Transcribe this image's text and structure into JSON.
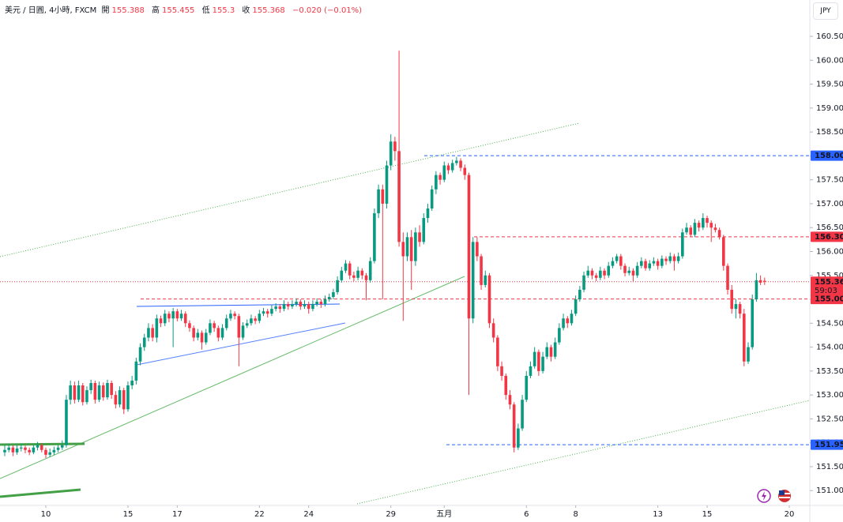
{
  "chart_data": {
    "type": "candlestick",
    "header": {
      "symbol": "美元 / 日圓, 4小時, FXCM",
      "ohlc_labels": [
        "開",
        "高",
        "低",
        "收"
      ],
      "ohlc_values": [
        155.388,
        155.455,
        155.3,
        155.368
      ],
      "change": "−0.020 (−0.01%)"
    },
    "currency": "JPY",
    "up_color": "#089981",
    "down_color": "#f23645",
    "ylim": [
      150.69,
      161.26
    ],
    "yticks": [
      {
        "value": 151.0,
        "label": "151.000"
      },
      {
        "value": 151.5,
        "label": "151.500"
      },
      {
        "value": 152.0,
        "label": "152.000"
      },
      {
        "value": 152.5,
        "label": "152.500"
      },
      {
        "value": 153.0,
        "label": "153.000"
      },
      {
        "value": 153.5,
        "label": "153.500"
      },
      {
        "value": 154.0,
        "label": "154.000"
      },
      {
        "value": 154.5,
        "label": "154.500"
      },
      {
        "value": 155.0,
        "label": "155.000"
      },
      {
        "value": 155.5,
        "label": "155.500"
      },
      {
        "value": 156.0,
        "label": "156.000"
      },
      {
        "value": 156.5,
        "label": "156.500"
      },
      {
        "value": 157.0,
        "label": "157.000"
      },
      {
        "value": 157.5,
        "label": "157.500"
      },
      {
        "value": 158.0,
        "label": "158.000"
      },
      {
        "value": 158.5,
        "label": "158.500"
      },
      {
        "value": 159.0,
        "label": "159.000"
      },
      {
        "value": 159.5,
        "label": "159.500"
      },
      {
        "value": 160.0,
        "label": "160.000"
      },
      {
        "value": 160.5,
        "label": "160.500"
      }
    ],
    "xlim": [
      -1.15,
      196
    ],
    "xticks": [
      {
        "value": 10,
        "label": "10"
      },
      {
        "value": 30,
        "label": "15"
      },
      {
        "value": 42,
        "label": "17"
      },
      {
        "value": 62,
        "label": "22"
      },
      {
        "value": 74,
        "label": "24"
      },
      {
        "value": 94,
        "label": "29"
      },
      {
        "value": 107,
        "label": "五月"
      },
      {
        "value": 127,
        "label": "6"
      },
      {
        "value": 139,
        "label": "8"
      },
      {
        "value": 159,
        "label": "13"
      },
      {
        "value": 171,
        "label": "15"
      },
      {
        "value": 191,
        "label": "20"
      }
    ],
    "levels": [
      {
        "value": 158.005,
        "color": "#2962ff"
      },
      {
        "value": 156.307,
        "color": "#f23645"
      },
      {
        "value": 155.007,
        "color": "#f23645"
      },
      {
        "value": 151.959,
        "color": "#2962ff"
      }
    ],
    "last_price": 155.368,
    "countdown": "59:03",
    "ohlc": [
      [
        151.8,
        151.95,
        151.72,
        151.85
      ],
      [
        151.85,
        151.98,
        151.8,
        151.9
      ],
      [
        151.9,
        151.95,
        151.72,
        151.8
      ],
      [
        151.8,
        151.95,
        151.75,
        151.88
      ],
      [
        151.88,
        151.98,
        151.82,
        151.9
      ],
      [
        151.9,
        151.94,
        151.78,
        151.85
      ],
      [
        151.85,
        151.9,
        151.74,
        151.8
      ],
      [
        151.8,
        151.96,
        151.76,
        151.9
      ],
      [
        151.9,
        152.02,
        151.84,
        151.95
      ],
      [
        151.95,
        151.99,
        151.8,
        151.85
      ],
      [
        151.85,
        151.9,
        151.68,
        151.75
      ],
      [
        151.75,
        151.88,
        151.7,
        151.8
      ],
      [
        151.8,
        151.92,
        151.74,
        151.85
      ],
      [
        151.85,
        151.96,
        151.8,
        151.9
      ],
      [
        151.9,
        152.05,
        151.85,
        151.95
      ],
      [
        151.95,
        153.0,
        151.9,
        152.9
      ],
      [
        152.9,
        153.3,
        152.8,
        153.2
      ],
      [
        153.2,
        153.28,
        152.82,
        152.9
      ],
      [
        152.9,
        153.3,
        152.85,
        153.2
      ],
      [
        153.2,
        153.25,
        152.78,
        152.85
      ],
      [
        152.85,
        153.18,
        152.8,
        153.1
      ],
      [
        153.1,
        153.32,
        153.02,
        153.25
      ],
      [
        153.25,
        153.3,
        152.82,
        152.9
      ],
      [
        152.9,
        153.28,
        152.85,
        153.2
      ],
      [
        153.2,
        153.26,
        152.88,
        152.95
      ],
      [
        152.95,
        153.32,
        152.9,
        153.25
      ],
      [
        153.25,
        153.3,
        152.92,
        153.0
      ],
      [
        153.0,
        153.08,
        152.72,
        152.8
      ],
      [
        152.8,
        153.18,
        152.74,
        153.1
      ],
      [
        153.1,
        153.15,
        152.6,
        152.7
      ],
      [
        152.7,
        153.28,
        152.65,
        153.2
      ],
      [
        153.2,
        153.4,
        153.12,
        153.3
      ],
      [
        153.3,
        153.78,
        153.22,
        153.7
      ],
      [
        153.7,
        154.08,
        153.62,
        154.0
      ],
      [
        154.0,
        154.28,
        153.92,
        154.2
      ],
      [
        154.2,
        154.5,
        154.12,
        154.4
      ],
      [
        154.4,
        154.48,
        154.12,
        154.2
      ],
      [
        154.2,
        154.68,
        154.1,
        154.6
      ],
      [
        154.6,
        154.66,
        154.42,
        154.5
      ],
      [
        154.5,
        154.78,
        154.44,
        154.7
      ],
      [
        154.7,
        154.75,
        154.52,
        154.6
      ],
      [
        154.6,
        154.82,
        154.0,
        154.75
      ],
      [
        154.75,
        154.8,
        154.54,
        154.6
      ],
      [
        154.6,
        154.78,
        154.55,
        154.7
      ],
      [
        154.7,
        154.75,
        154.42,
        154.5
      ],
      [
        154.5,
        154.56,
        154.32,
        154.4
      ],
      [
        154.4,
        154.45,
        154.12,
        154.2
      ],
      [
        154.2,
        154.38,
        154.14,
        154.3
      ],
      [
        154.3,
        154.35,
        153.95,
        154.1
      ],
      [
        154.1,
        154.38,
        154.05,
        154.3
      ],
      [
        154.3,
        154.58,
        154.25,
        154.5
      ],
      [
        154.5,
        154.55,
        154.32,
        154.4
      ],
      [
        154.4,
        154.45,
        154.12,
        154.2
      ],
      [
        154.2,
        154.48,
        154.15,
        154.4
      ],
      [
        154.4,
        154.68,
        154.35,
        154.6
      ],
      [
        154.6,
        154.78,
        154.55,
        154.7
      ],
      [
        154.7,
        154.75,
        154.58,
        154.65
      ],
      [
        154.65,
        154.7,
        153.6,
        154.2
      ],
      [
        154.2,
        154.52,
        154.15,
        154.45
      ],
      [
        154.45,
        154.58,
        154.4,
        154.5
      ],
      [
        154.5,
        154.68,
        154.45,
        154.6
      ],
      [
        154.6,
        154.65,
        154.48,
        154.55
      ],
      [
        154.55,
        154.78,
        154.5,
        154.7
      ],
      [
        154.7,
        154.82,
        154.65,
        154.75
      ],
      [
        154.75,
        154.8,
        154.62,
        154.7
      ],
      [
        154.7,
        154.88,
        154.65,
        154.8
      ],
      [
        154.8,
        154.92,
        154.75,
        154.85
      ],
      [
        154.85,
        154.9,
        154.72,
        154.8
      ],
      [
        154.8,
        154.98,
        154.75,
        154.9
      ],
      [
        154.9,
        154.95,
        154.78,
        154.85
      ],
      [
        154.85,
        154.98,
        154.8,
        154.9
      ],
      [
        154.9,
        155.02,
        154.85,
        154.95
      ],
      [
        154.95,
        155.0,
        154.78,
        154.85
      ],
      [
        154.85,
        154.98,
        154.8,
        154.9
      ],
      [
        154.9,
        154.95,
        154.7,
        154.8
      ],
      [
        154.8,
        154.98,
        154.75,
        154.9
      ],
      [
        154.9,
        155.02,
        154.85,
        154.95
      ],
      [
        154.95,
        155.0,
        154.82,
        154.9
      ],
      [
        154.9,
        155.08,
        154.85,
        155.0
      ],
      [
        155.0,
        155.12,
        154.95,
        155.05
      ],
      [
        155.05,
        155.22,
        155.0,
        155.15
      ],
      [
        155.15,
        155.48,
        155.1,
        155.4
      ],
      [
        155.4,
        155.68,
        155.35,
        155.6
      ],
      [
        155.6,
        155.82,
        155.55,
        155.75
      ],
      [
        155.75,
        155.8,
        155.42,
        155.5
      ],
      [
        155.5,
        155.58,
        155.38,
        155.45
      ],
      [
        155.45,
        155.68,
        155.4,
        155.6
      ],
      [
        155.6,
        155.65,
        155.42,
        155.5
      ],
      [
        155.5,
        155.55,
        154.98,
        155.4
      ],
      [
        155.4,
        155.88,
        155.35,
        155.8
      ],
      [
        155.8,
        156.9,
        155.75,
        156.8
      ],
      [
        156.8,
        157.4,
        156.7,
        157.3
      ],
      [
        157.3,
        157.4,
        155.0,
        157.0
      ],
      [
        157.0,
        157.9,
        156.9,
        157.8
      ],
      [
        157.8,
        158.45,
        157.7,
        158.3
      ],
      [
        158.3,
        158.4,
        157.9,
        158.1
      ],
      [
        158.1,
        160.2,
        156.1,
        156.2
      ],
      [
        156.2,
        156.4,
        154.55,
        155.9
      ],
      [
        155.9,
        156.4,
        155.8,
        156.3
      ],
      [
        156.3,
        156.45,
        155.2,
        155.8
      ],
      [
        155.8,
        156.5,
        155.7,
        156.4
      ],
      [
        156.4,
        156.55,
        156.1,
        156.2
      ],
      [
        156.2,
        156.8,
        156.15,
        156.7
      ],
      [
        156.7,
        157.0,
        156.6,
        156.9
      ],
      [
        156.9,
        157.38,
        156.85,
        157.3
      ],
      [
        157.3,
        157.68,
        157.2,
        157.6
      ],
      [
        157.6,
        157.65,
        157.4,
        157.5
      ],
      [
        157.5,
        157.88,
        157.45,
        157.8
      ],
      [
        157.8,
        157.85,
        157.62,
        157.7
      ],
      [
        157.7,
        157.92,
        157.65,
        157.85
      ],
      [
        157.85,
        157.98,
        157.8,
        157.9
      ],
      [
        157.9,
        157.95,
        157.68,
        157.75
      ],
      [
        157.75,
        157.82,
        157.5,
        157.6
      ],
      [
        157.6,
        157.65,
        153.0,
        154.6
      ],
      [
        154.6,
        156.3,
        154.5,
        156.2
      ],
      [
        156.2,
        156.3,
        155.8,
        155.9
      ],
      [
        155.9,
        155.95,
        155.2,
        155.3
      ],
      [
        155.3,
        155.6,
        155.25,
        155.5
      ],
      [
        155.5,
        155.55,
        154.4,
        154.5
      ],
      [
        154.5,
        154.6,
        154.1,
        154.2
      ],
      [
        154.2,
        154.25,
        153.5,
        153.6
      ],
      [
        153.6,
        153.7,
        153.3,
        153.4
      ],
      [
        153.4,
        153.45,
        152.9,
        153.0
      ],
      [
        153.0,
        153.1,
        152.7,
        152.8
      ],
      [
        152.8,
        152.85,
        151.8,
        151.9
      ],
      [
        151.9,
        152.4,
        151.85,
        152.3
      ],
      [
        152.3,
        153.0,
        152.25,
        152.9
      ],
      [
        152.9,
        153.5,
        152.85,
        153.4
      ],
      [
        153.4,
        153.7,
        153.35,
        153.6
      ],
      [
        153.6,
        154.0,
        153.55,
        153.9
      ],
      [
        153.9,
        153.95,
        153.4,
        153.5
      ],
      [
        153.5,
        153.9,
        153.45,
        153.8
      ],
      [
        153.8,
        154.1,
        153.75,
        154.0
      ],
      [
        154.0,
        154.05,
        153.7,
        153.8
      ],
      [
        153.8,
        154.2,
        153.75,
        154.1
      ],
      [
        154.1,
        154.5,
        154.05,
        154.4
      ],
      [
        154.4,
        154.7,
        154.35,
        154.6
      ],
      [
        154.6,
        154.65,
        154.4,
        154.5
      ],
      [
        154.5,
        154.78,
        154.45,
        154.7
      ],
      [
        154.7,
        155.08,
        154.65,
        155.0
      ],
      [
        155.0,
        155.28,
        154.95,
        155.2
      ],
      [
        155.2,
        155.58,
        155.15,
        155.5
      ],
      [
        155.5,
        155.7,
        155.45,
        155.6
      ],
      [
        155.6,
        155.65,
        155.42,
        155.5
      ],
      [
        155.5,
        155.55,
        155.38,
        155.45
      ],
      [
        155.45,
        155.68,
        155.4,
        155.6
      ],
      [
        155.6,
        155.65,
        155.42,
        155.5
      ],
      [
        155.5,
        155.78,
        155.45,
        155.7
      ],
      [
        155.7,
        155.88,
        155.65,
        155.8
      ],
      [
        155.8,
        155.95,
        155.75,
        155.9
      ],
      [
        155.9,
        155.95,
        155.62,
        155.7
      ],
      [
        155.7,
        155.75,
        155.48,
        155.55
      ],
      [
        155.55,
        155.68,
        155.5,
        155.6
      ],
      [
        155.6,
        155.65,
        155.38,
        155.5
      ],
      [
        155.5,
        155.78,
        155.45,
        155.7
      ],
      [
        155.7,
        155.88,
        155.65,
        155.8
      ],
      [
        155.8,
        155.85,
        155.6,
        155.65
      ],
      [
        155.65,
        155.82,
        155.6,
        155.75
      ],
      [
        155.75,
        155.88,
        155.7,
        155.8
      ],
      [
        155.8,
        155.85,
        155.62,
        155.7
      ],
      [
        155.7,
        155.92,
        155.65,
        155.85
      ],
      [
        155.85,
        155.9,
        155.72,
        155.8
      ],
      [
        155.8,
        155.98,
        155.75,
        155.9
      ],
      [
        155.9,
        155.95,
        155.6,
        155.8
      ],
      [
        155.8,
        155.98,
        155.75,
        155.9
      ],
      [
        155.9,
        156.48,
        155.85,
        156.4
      ],
      [
        156.4,
        156.6,
        156.35,
        156.5
      ],
      [
        156.5,
        156.55,
        156.3,
        156.35
      ],
      [
        156.35,
        156.68,
        156.3,
        156.6
      ],
      [
        156.6,
        156.65,
        156.42,
        156.5
      ],
      [
        156.5,
        156.8,
        156.45,
        156.7
      ],
      [
        156.7,
        156.75,
        156.5,
        156.6
      ],
      [
        156.6,
        156.65,
        156.2,
        156.5
      ],
      [
        156.5,
        156.58,
        156.4,
        156.45
      ],
      [
        156.45,
        156.5,
        156.25,
        156.3
      ],
      [
        156.3,
        156.35,
        155.6,
        155.7
      ],
      [
        155.7,
        155.75,
        155.1,
        155.2
      ],
      [
        155.2,
        155.3,
        154.7,
        154.8
      ],
      [
        154.8,
        155.0,
        154.6,
        154.9
      ],
      [
        154.9,
        154.95,
        154.6,
        154.7
      ],
      [
        154.7,
        154.8,
        153.6,
        153.7
      ],
      [
        153.7,
        154.1,
        153.65,
        154.0
      ],
      [
        154.0,
        155.1,
        153.95,
        155.0
      ],
      [
        155.0,
        155.55,
        154.95,
        155.4
      ],
      [
        155.4,
        155.5,
        155.3,
        155.35
      ],
      [
        155.388,
        155.455,
        155.3,
        155.368
      ]
    ]
  }
}
